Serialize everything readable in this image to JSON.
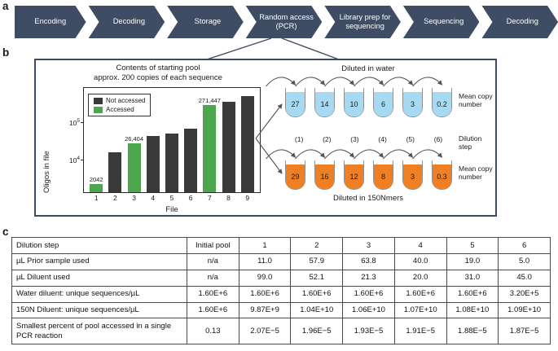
{
  "panels": {
    "a": "a",
    "b": "b",
    "c": "c"
  },
  "workflow": {
    "color": "#3e4d63",
    "steps": [
      {
        "label": "Encoding"
      },
      {
        "label": "Decoding"
      },
      {
        "label": "Storage"
      },
      {
        "label": "Random access (PCR)"
      },
      {
        "label": "Library prep for sequencing"
      },
      {
        "label": "Sequencing"
      },
      {
        "label": "Decoding"
      }
    ]
  },
  "chart_data": {
    "type": "bar",
    "title_line1": "Contents of starting pool",
    "title_line2": "approx. 200 copies of each sequence",
    "ylabel": "Oligos in file",
    "xlabel": "File",
    "yscale": "log",
    "ytick_base": "10",
    "ytick_exponents": [
      "4",
      "5"
    ],
    "ylim_log10": [
      3.1,
      5.9
    ],
    "categories": [
      "1",
      "2",
      "3",
      "4",
      "5",
      "6",
      "7",
      "8",
      "9"
    ],
    "values": [
      2042,
      15000,
      26404,
      40000,
      48000,
      65000,
      271447,
      330000,
      480000
    ],
    "accessed": [
      true,
      false,
      true,
      false,
      false,
      false,
      true,
      false,
      false
    ],
    "bar_labels": [
      "2042",
      "",
      "26,404",
      "",
      "",
      "",
      "271,447",
      "",
      ""
    ],
    "colors": {
      "not_accessed": "#3a3a3a",
      "accessed": "#4ca64c"
    },
    "legend": [
      {
        "label": "Not accessed",
        "color": "#3a3a3a"
      },
      {
        "label": "Accessed",
        "color": "#4ca64c"
      }
    ],
    "legend_position": "upper-left"
  },
  "dilution": {
    "water": {
      "title": "Diluted in water",
      "color": "#a6d9f2",
      "values": [
        "27",
        "14",
        "10",
        "6",
        "3",
        "0.2"
      ],
      "side_label": "Mean copy number"
    },
    "steps": {
      "labels": [
        "(1)",
        "(2)",
        "(3)",
        "(4)",
        "(5)",
        "(6)"
      ],
      "side_label": "Dilution step"
    },
    "nmers": {
      "title": "Diluted in 150Nmers",
      "color": "#f07f23",
      "values": [
        "29",
        "16",
        "12",
        "8",
        "3",
        "0.3"
      ],
      "side_label": "Mean copy number"
    }
  },
  "table": {
    "header_row": [
      "Dilution step",
      "Initial pool",
      "1",
      "2",
      "3",
      "4",
      "5",
      "6"
    ],
    "rows": [
      [
        "µL Prior sample used",
        "n/a",
        "11.0",
        "57.9",
        "63.8",
        "40.0",
        "19.0",
        "5.0"
      ],
      [
        "µL Diluent used",
        "n/a",
        "99.0",
        "52.1",
        "21.3",
        "20.0",
        "31.0",
        "45.0"
      ],
      [
        "Water diluent: unique sequences/µL",
        "1.60E+6",
        "1.60E+6",
        "1.60E+6",
        "1.60E+6",
        "1.60E+6",
        "1.60E+6",
        "3.20E+5"
      ],
      [
        "150N Diluent: unique sequences/µL",
        "1.60E+6",
        "9.87E+9",
        "1.04E+10",
        "1.06E+10",
        "1.07E+10",
        "1.08E+10",
        "1.09E+10"
      ],
      [
        "Smallest percent of pool accessed in a single PCR reaction",
        "0.13",
        "2.07E−5",
        "1.96E−5",
        "1.93E−5",
        "1.91E−5",
        "1.88E−5",
        "1.87E−5"
      ]
    ]
  }
}
